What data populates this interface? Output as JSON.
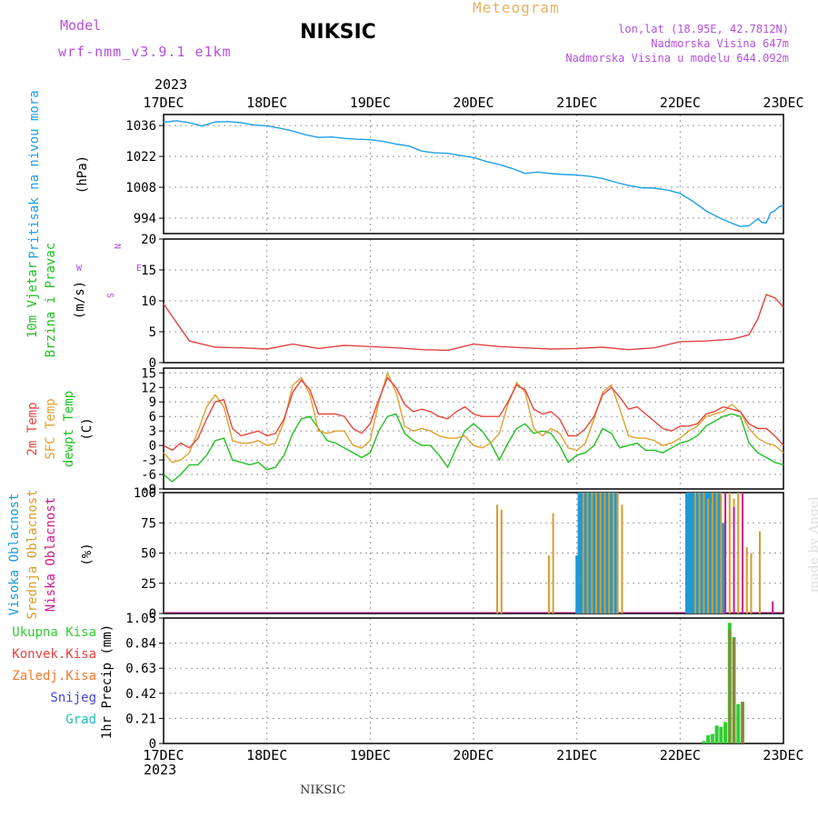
{
  "header": {
    "model_label": "Model",
    "model_name": "wrf-nmm_v3.9.1 e1km",
    "station": "NIKSIC",
    "chart_title": "Meteogram",
    "coords": "lon,lat (18.95E, 42.7812N)",
    "elevation": "Nadmorska Visina 647m",
    "model_elevation": "Nadmorska Visina u modelu 644.092m",
    "year_top": "2023",
    "year_bottom": "2023",
    "footer_station": "NIKSIC",
    "watermark": "made by Angel"
  },
  "x_axis": {
    "labels": [
      "17DEC",
      "18DEC",
      "19DEC",
      "20DEC",
      "21DEC",
      "22DEC",
      "23DEC"
    ],
    "range_hours": [
      0,
      144
    ],
    "grid": true
  },
  "colors": {
    "pressure": "#1fa0e6",
    "t2m": "#e8453c",
    "sfc": "#e0a030",
    "dewpt": "#22c022",
    "high_cloud": "#1e9ad6",
    "mid_cloud": "#d89c2a",
    "low_cloud": "#d01a8c",
    "total_precip": "#33cc33",
    "conv_precip": "#e84040",
    "frz_precip": "#f07a30",
    "snow": "#4444dd",
    "hail": "#22bbbb",
    "wind_speed": "#e04444",
    "header_purple": "#b44fe0",
    "header_orange": "#e8b060"
  },
  "panels": {
    "pressure": {
      "label": "Pritisak na nivou mora",
      "unit": "(hPa)",
      "ticks": [
        "1036",
        "1022",
        "1008",
        "994"
      ]
    },
    "wind": {
      "label1": "10m Vjetar",
      "label2": "Brzina i Pravac",
      "unit": "(m/s)",
      "ticks": [
        "20",
        "15",
        "10",
        "5",
        "0"
      ],
      "compass": [
        "N",
        "E",
        "S",
        "W"
      ]
    },
    "temp": {
      "label1": "2m Temp",
      "label2": "SFC Temp",
      "label3": "dewpt Temp",
      "unit": "(C)",
      "ticks": [
        "15",
        "12",
        "9",
        "6",
        "3",
        "0",
        "-3",
        "-6",
        "-9"
      ]
    },
    "cloud": {
      "label1": "Visoka Oblacnost",
      "label2": "Srednja Oblacnost",
      "label3": "Niska Oblacnost",
      "unit": "(%)",
      "ticks": [
        "100",
        "75",
        "50",
        "25",
        "0"
      ]
    },
    "precip": {
      "legend": [
        "Ukupna Kisa",
        "Konvek.Kisa",
        "Zaledj.Kisa",
        "Snijeg",
        "Grad"
      ],
      "unit": "1hr Precip (mm)",
      "ticks": [
        "1.05",
        "0.84",
        "0.63",
        "0.42",
        "0.21",
        "0"
      ]
    }
  },
  "chart_data": [
    {
      "type": "line",
      "title": "Pritisak na nivou mora",
      "ylabel": "(hPa)",
      "ylim": [
        987,
        1041
      ],
      "x_unit": "hours since 17DEC 00",
      "x": [
        0,
        3,
        6,
        9,
        12,
        15,
        18,
        21,
        24,
        27,
        30,
        33,
        36,
        39,
        42,
        45,
        48,
        51,
        54,
        57,
        60,
        63,
        66,
        69,
        72,
        75,
        78,
        81,
        84,
        87,
        90,
        93,
        96,
        99,
        102,
        105,
        108,
        111,
        114,
        117,
        120,
        123,
        126,
        129,
        132,
        134,
        136,
        138,
        139,
        140,
        141,
        142,
        143,
        144
      ],
      "values": [
        1037.5,
        1038.2,
        1037.3,
        1035.8,
        1037.6,
        1037.8,
        1037.3,
        1036.2,
        1035.9,
        1034.8,
        1033.5,
        1031.8,
        1030.6,
        1030.8,
        1030.2,
        1029.8,
        1029.6,
        1028.8,
        1027.6,
        1026.7,
        1024.4,
        1023.6,
        1023.4,
        1022.4,
        1021.5,
        1019.7,
        1018.3,
        1016.5,
        1014.3,
        1014.9,
        1014.2,
        1013.8,
        1013.6,
        1013.0,
        1012.0,
        1010.3,
        1008.8,
        1007.8,
        1007.6,
        1006.8,
        1005.2,
        1001.6,
        997.3,
        994.2,
        991.7,
        990.2,
        990.5,
        993.7,
        992.1,
        991.8,
        996.3,
        997.4,
        999.2,
        999.8
      ]
    },
    {
      "type": "line",
      "title": "10m Vjetar Brzina i Pravac",
      "ylabel": "(m/s)",
      "ylim": [
        0,
        20
      ],
      "series": [
        {
          "name": "speed",
          "x": [
            0,
            6,
            12,
            18,
            24,
            30,
            36,
            42,
            48,
            54,
            60,
            66,
            72,
            78,
            84,
            90,
            96,
            102,
            108,
            114,
            120,
            126,
            132,
            136,
            138,
            140,
            142,
            144
          ],
          "values": [
            9.5,
            3.5,
            2.5,
            2.4,
            2.2,
            3.0,
            2.3,
            2.8,
            2.6,
            2.4,
            2.1,
            2.0,
            3.0,
            2.6,
            2.4,
            2.2,
            2.3,
            2.5,
            2.1,
            2.4,
            3.4,
            3.5,
            3.8,
            4.5,
            7.0,
            11.0,
            10.5,
            9.0
          ]
        }
      ]
    },
    {
      "type": "line",
      "title": "2m Temp / SFC Temp / dewpt Temp",
      "ylabel": "(C)",
      "ylim": [
        -9,
        16
      ],
      "x": [
        0,
        2,
        4,
        6,
        8,
        10,
        12,
        14,
        16,
        18,
        20,
        22,
        24,
        26,
        28,
        30,
        32,
        34,
        36,
        38,
        40,
        42,
        44,
        46,
        48,
        50,
        52,
        54,
        56,
        58,
        60,
        62,
        64,
        66,
        68,
        70,
        72,
        74,
        76,
        78,
        80,
        82,
        84,
        86,
        88,
        90,
        92,
        94,
        96,
        98,
        100,
        102,
        104,
        106,
        108,
        110,
        112,
        114,
        116,
        118,
        120,
        122,
        124,
        126,
        128,
        130,
        132,
        134,
        136,
        138,
        140,
        142,
        144
      ],
      "series": [
        {
          "name": "2m Temp",
          "values": [
            0.0,
            -1.0,
            0.5,
            -0.5,
            1.5,
            5.5,
            9.0,
            9.5,
            3.5,
            2.0,
            2.5,
            3.0,
            2.0,
            2.5,
            5.5,
            11.0,
            13.5,
            11.5,
            6.5,
            6.5,
            6.5,
            6.0,
            3.5,
            2.5,
            4.5,
            9.5,
            14.0,
            12.0,
            8.5,
            7.0,
            7.5,
            7.0,
            6.0,
            5.5,
            7.0,
            8.0,
            6.5,
            6.0,
            6.0,
            6.0,
            9.0,
            12.5,
            11.5,
            7.5,
            6.5,
            7.0,
            5.5,
            2.0,
            2.0,
            3.5,
            6.0,
            10.5,
            12.0,
            10.0,
            7.5,
            8.0,
            6.5,
            5.0,
            3.5,
            3.0,
            4.0,
            4.0,
            4.5,
            6.5,
            7.0,
            8.0,
            7.5,
            7.0,
            4.5,
            3.5,
            3.5,
            2.0,
            0.0
          ]
        },
        {
          "name": "SFC Temp",
          "values": [
            -1.5,
            -3.5,
            -3.0,
            -1.5,
            3.0,
            8.0,
            10.5,
            8.0,
            1.0,
            0.5,
            0.5,
            1.0,
            0.0,
            0.5,
            5.0,
            12.5,
            14.0,
            10.5,
            3.0,
            2.5,
            3.0,
            3.0,
            0.0,
            -0.5,
            1.0,
            9.0,
            15.0,
            11.0,
            4.0,
            3.0,
            3.5,
            3.0,
            2.0,
            1.5,
            1.5,
            2.0,
            0.0,
            -0.5,
            0.5,
            2.5,
            8.5,
            13.0,
            11.0,
            3.5,
            2.0,
            3.5,
            2.5,
            -0.5,
            -1.0,
            0.5,
            5.5,
            11.0,
            12.5,
            7.5,
            2.0,
            1.5,
            1.5,
            1.0,
            0.0,
            0.5,
            1.5,
            3.0,
            4.0,
            6.0,
            6.5,
            7.0,
            8.5,
            7.0,
            3.5,
            1.5,
            0.5,
            0.0,
            -1.5
          ]
        },
        {
          "name": "dewpt Temp",
          "values": [
            -6.0,
            -7.5,
            -6.0,
            -4.0,
            -4.0,
            -2.0,
            1.0,
            1.5,
            -3.0,
            -3.5,
            -4.0,
            -3.5,
            -5.0,
            -4.5,
            -2.0,
            2.5,
            5.5,
            6.0,
            3.5,
            1.0,
            0.5,
            -0.5,
            -1.5,
            -2.5,
            -1.5,
            3.0,
            6.0,
            6.5,
            2.5,
            1.0,
            0.0,
            0.0,
            -2.0,
            -4.5,
            -0.5,
            3.0,
            4.5,
            3.0,
            0.5,
            -3.0,
            0.5,
            3.5,
            4.5,
            2.5,
            3.0,
            2.5,
            0.0,
            -3.5,
            -2.0,
            -1.5,
            0.0,
            3.5,
            2.5,
            -0.5,
            0.0,
            0.5,
            -1.0,
            -1.0,
            -1.5,
            -0.5,
            0.5,
            1.0,
            2.0,
            4.0,
            5.0,
            6.0,
            6.5,
            6.0,
            0.5,
            -1.5,
            -2.5,
            -3.5,
            -4.0
          ]
        }
      ]
    },
    {
      "type": "bar",
      "title": "Visoka / Srednja / Niska Oblacnost",
      "ylabel": "(%)",
      "ylim": [
        0,
        100
      ],
      "series": [
        {
          "name": "Visoka Oblacnost",
          "x": [
            96,
            96.5,
            97,
            97.5,
            98,
            98.5,
            99,
            99.5,
            100,
            100.5,
            101,
            101.5,
            102,
            102.5,
            103,
            103.5,
            104,
            104.5,
            105,
            121.5,
            122,
            122.5,
            123,
            123.5,
            124,
            124.5,
            125,
            125.5,
            126,
            126.5,
            127,
            127.5,
            128,
            128.5,
            129,
            130
          ],
          "values": [
            48,
            100,
            100,
            100,
            100,
            100,
            100,
            100,
            100,
            100,
            100,
            100,
            100,
            100,
            100,
            100,
            100,
            100,
            100,
            100,
            100,
            100,
            100,
            100,
            100,
            100,
            100,
            100,
            100,
            100,
            100,
            100,
            100,
            100,
            100,
            75
          ]
        },
        {
          "name": "Srednja Oblacnost",
          "x": [
            77.5,
            78.5,
            89.5,
            90.5,
            97.5,
            98.5,
            99.5,
            100.5,
            101.5,
            102.5,
            103.5,
            104.5,
            105.5,
            106.5,
            123.5,
            124.5,
            125.5,
            126.5,
            127.5,
            128.5,
            129.5,
            130.5,
            131.5,
            132.5,
            133.5,
            134.5,
            135.5,
            136.5,
            138.5
          ],
          "values": [
            90,
            86,
            48,
            83,
            100,
            100,
            100,
            100,
            100,
            100,
            100,
            100,
            100,
            90,
            100,
            100,
            100,
            95,
            100,
            100,
            100,
            100,
            100,
            95,
            100,
            90,
            55,
            50,
            68
          ]
        },
        {
          "name": "Niska Oblacnost",
          "x": [
            130.5,
            132.5,
            134.5,
            141.5
          ],
          "values": [
            100,
            88,
            100,
            10
          ]
        }
      ]
    },
    {
      "type": "bar",
      "title": "1hr Precip",
      "ylabel": "(mm)",
      "ylim": [
        0,
        1.05
      ],
      "series": [
        {
          "name": "Ukupna Kisa",
          "x": [
            125.5,
            126.5,
            127.5,
            128.5,
            129.5,
            130.5,
            131.5,
            132.5,
            133.5,
            134.5
          ],
          "values": [
            0.02,
            0.07,
            0.08,
            0.15,
            0.14,
            0.18,
            1.01,
            0.89,
            0.33,
            0.35
          ]
        },
        {
          "name": "Konvek.Kisa",
          "x": [
            131.5,
            132.5,
            134.5
          ],
          "values": [
            0.95,
            0.88,
            0.35
          ]
        }
      ]
    }
  ]
}
